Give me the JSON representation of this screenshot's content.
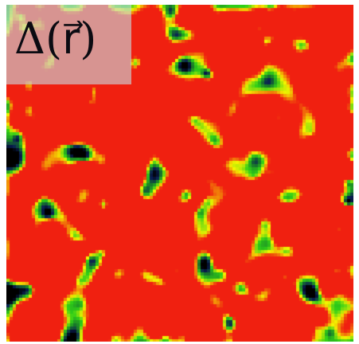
{
  "figure": {
    "label": "Δ(r⃗)",
    "colormap": [
      "#000000",
      "#0a1e55",
      "#1a7a2a",
      "#30d018",
      "#f4f400",
      "#f02010"
    ]
  }
}
